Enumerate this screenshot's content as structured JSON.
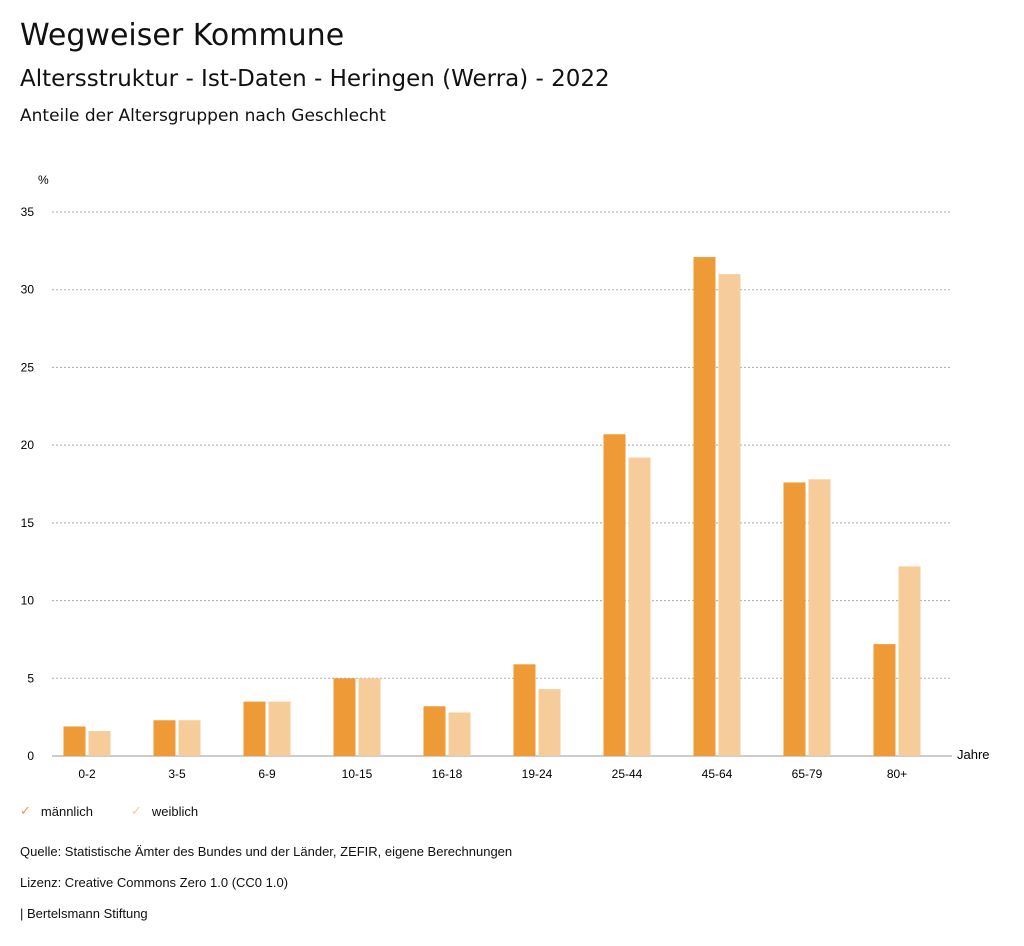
{
  "header": {
    "title": "Wegweiser Kommune",
    "subtitle": "Altersstruktur - Ist-Daten - Heringen (Werra) - 2022",
    "chart_title": "Anteile der Altersgruppen nach Geschlecht"
  },
  "chart_data": {
    "type": "bar",
    "title": "Anteile der Altersgruppen nach Geschlecht",
    "ylabel": "%",
    "xlabel": "Jahre",
    "ylim": [
      0,
      35
    ],
    "yticks": [
      0,
      5,
      10,
      15,
      20,
      25,
      30,
      35
    ],
    "categories": [
      "0-2",
      "3-5",
      "6-9",
      "10-15",
      "16-18",
      "19-24",
      "25-44",
      "45-64",
      "65-79",
      "80+"
    ],
    "series": [
      {
        "name": "männlich",
        "color": "#ee9a37",
        "values": [
          1.9,
          2.3,
          3.5,
          5.0,
          3.2,
          5.9,
          20.7,
          32.1,
          17.6,
          7.2
        ]
      },
      {
        "name": "weiblich",
        "color": "#f5cc9a",
        "values": [
          1.6,
          2.3,
          3.5,
          5.0,
          2.8,
          4.3,
          19.2,
          31.0,
          17.8,
          12.2
        ]
      }
    ],
    "grid": true,
    "legend": "bottom-left"
  },
  "footer": {
    "source": "Quelle: Statistische Ämter des Bundes und der Länder, ZEFIR, eigene Berechnungen",
    "license": "Lizenz: Creative Commons Zero 1.0 (CC0 1.0)",
    "brand": "| Bertelsmann Stiftung"
  }
}
